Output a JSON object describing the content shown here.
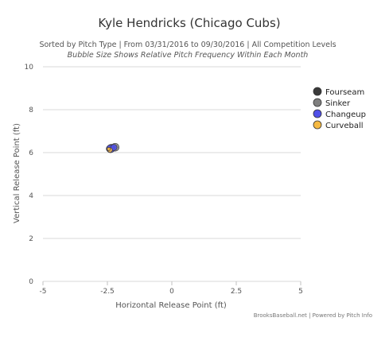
{
  "chart_data": {
    "type": "scatter",
    "title": "Kyle Hendricks (Chicago Cubs)",
    "subtitle": "Sorted by Pitch Type | From 03/31/2016 to 09/30/2016 | All Competition Levels",
    "subtitle2": "Bubble Size Shows Relative Pitch Frequency Within Each Month",
    "xlabel": "Horizontal Release Point (ft)",
    "ylabel": "Vertical Release Point (ft)",
    "xlim": [
      -5,
      5
    ],
    "ylim": [
      0,
      10
    ],
    "xticks": [
      "-5",
      "-2.5",
      "0",
      "2.5",
      "5"
    ],
    "yticks": [
      "0",
      "2",
      "4",
      "6",
      "8",
      "10"
    ],
    "grid": true,
    "legend_position": "right",
    "credits": "BrooksBaseball.net | Powered by Pitch Info",
    "series": [
      {
        "name": "Fourseam",
        "color": "#3a3a3a",
        "points": [
          {
            "x": -2.42,
            "y": 6.18,
            "size": 4
          },
          {
            "x": -2.3,
            "y": 6.22,
            "size": 4
          }
        ]
      },
      {
        "name": "Sinker",
        "color": "#7f7f7f",
        "points": [
          {
            "x": -2.35,
            "y": 6.2,
            "size": 5
          },
          {
            "x": -2.2,
            "y": 6.25,
            "size": 5
          }
        ]
      },
      {
        "name": "Changeup",
        "color": "#5050e8",
        "points": [
          {
            "x": -2.38,
            "y": 6.18,
            "size": 5
          },
          {
            "x": -2.25,
            "y": 6.24,
            "size": 4
          }
        ]
      },
      {
        "name": "Curveball",
        "color": "#f5b942",
        "points": [
          {
            "x": -2.4,
            "y": 6.12,
            "size": 3
          },
          {
            "x": -2.45,
            "y": 6.17,
            "size": 2
          }
        ]
      }
    ]
  }
}
